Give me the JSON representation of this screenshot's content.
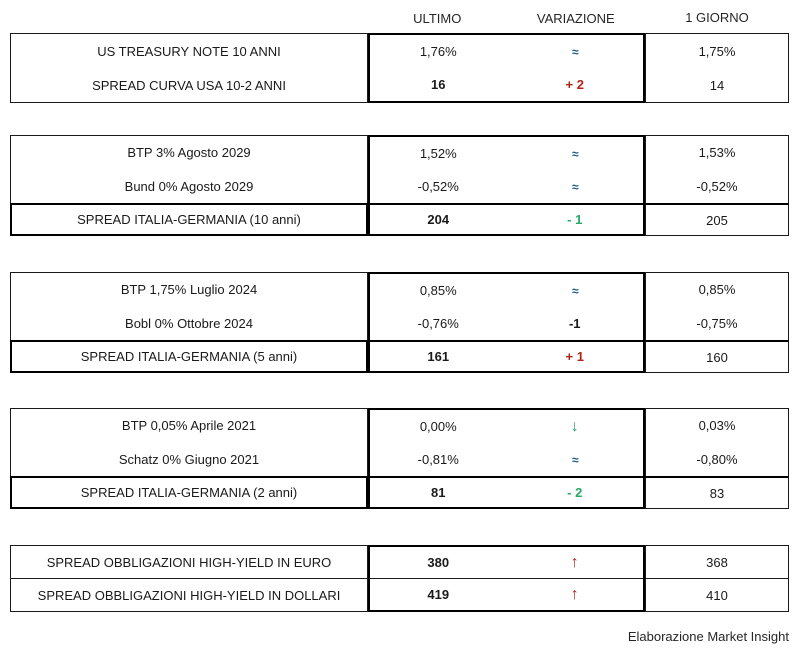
{
  "header": {
    "ultimo": "ULTIMO",
    "variazione": "VARIAZIONE",
    "giorno": "1 GIORNO"
  },
  "colors": {
    "up_red": "#B02418",
    "down_green": "#27A865",
    "flat_blue": "#1C5A85",
    "neutral_black": "#1A1A1A"
  },
  "blocks": {
    "usa": {
      "rows": [
        {
          "label": "US TREASURY NOTE 10 ANNI",
          "ultimo": "1,76%",
          "variazione": {
            "text": "≈",
            "color": "#1C5A85"
          },
          "giorno": "1,75%"
        },
        {
          "label": "SPREAD CURVA USA 10-2 ANNI",
          "ultimo": "16",
          "variazione": {
            "text": "+ 2",
            "color": "#B02418"
          },
          "giorno": "14"
        }
      ]
    },
    "ger10": {
      "bonds": [
        {
          "label": "BTP 3% Agosto 2029",
          "ultimo": "1,52%",
          "variazione": {
            "text": "≈",
            "color": "#1C5A85"
          },
          "giorno": "1,53%"
        },
        {
          "label": "Bund 0% Agosto 2029",
          "ultimo": "-0,52%",
          "variazione": {
            "text": "≈",
            "color": "#1C5A85"
          },
          "giorno": "-0,52%"
        }
      ],
      "spread": {
        "label": "SPREAD ITALIA-GERMANIA (10 anni)",
        "ultimo": "204",
        "variazione": {
          "text": "- 1",
          "color": "#27A865"
        },
        "giorno": "205"
      }
    },
    "ger5": {
      "bonds": [
        {
          "label": "BTP 1,75% Luglio 2024",
          "ultimo": "0,85%",
          "variazione": {
            "text": "≈",
            "color": "#1C5A85"
          },
          "giorno": "0,85%"
        },
        {
          "label": "Bobl 0% Ottobre 2024",
          "ultimo": "-0,76%",
          "variazione": {
            "text": "-1",
            "color": "#1A1A1A"
          },
          "giorno": "-0,75%"
        }
      ],
      "spread": {
        "label": "SPREAD ITALIA-GERMANIA (5 anni)",
        "ultimo": "161",
        "variazione": {
          "text": "+ 1",
          "color": "#B02418"
        },
        "giorno": "160"
      }
    },
    "ger2": {
      "bonds": [
        {
          "label": "BTP 0,05% Aprile 2021",
          "ultimo": "0,00%",
          "variazione": {
            "text": "↓",
            "color": "#27A865"
          },
          "giorno": "0,03%"
        },
        {
          "label": "Schatz 0% Giugno 2021",
          "ultimo": "-0,81%",
          "variazione": {
            "text": "≈",
            "color": "#1C5A85"
          },
          "giorno": "-0,80%"
        }
      ],
      "spread": {
        "label": "SPREAD ITALIA-GERMANIA (2 anni)",
        "ultimo": "81",
        "variazione": {
          "text": "- 2",
          "color": "#27A865"
        },
        "giorno": "83"
      }
    },
    "highyield": {
      "rows": [
        {
          "label": "SPREAD OBBLIGAZIONI HIGH-YIELD IN EURO",
          "ultimo": "380",
          "variazione": {
            "text": "↑",
            "color": "#B02418"
          },
          "giorno": "368"
        },
        {
          "label": "SPREAD OBBLIGAZIONI HIGH-YIELD IN DOLLARI",
          "ultimo": "419",
          "variazione": {
            "text": "↑",
            "color": "#B02418"
          },
          "giorno": "410"
        }
      ]
    }
  },
  "footer": {
    "credit": "Elaborazione Market Insight"
  }
}
